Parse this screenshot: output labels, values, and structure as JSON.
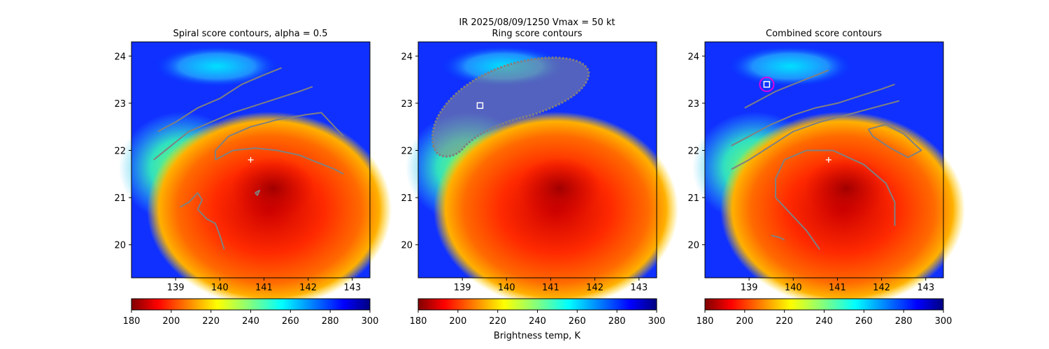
{
  "figure": {
    "suptitle_line1": "IR  2025/08/09/1250    Vmax = 50 kt",
    "colorbar_label": "Brightness temp, K"
  },
  "chart_data": [
    {
      "type": "heatmap",
      "title": "Spiral score contours, alpha =  0.5",
      "xlim": [
        138.0,
        143.4
      ],
      "ylim": [
        19.3,
        24.3
      ],
      "xticks": [
        "139",
        "140",
        "141",
        "142",
        "143"
      ],
      "yticks": [
        "20",
        "21",
        "22",
        "23",
        "24"
      ],
      "center_marker": {
        "lon": 140.7,
        "lat": 21.8
      },
      "contours": [
        [
          [
            138.6,
            22.4
          ],
          [
            139.0,
            22.6
          ],
          [
            139.5,
            22.9
          ],
          [
            140.0,
            23.1
          ],
          [
            140.5,
            23.4
          ],
          [
            141.0,
            23.6
          ],
          [
            141.4,
            23.75
          ]
        ],
        [
          [
            138.5,
            21.8
          ],
          [
            138.9,
            22.1
          ],
          [
            139.3,
            22.4
          ],
          [
            139.8,
            22.6
          ],
          [
            140.3,
            22.8
          ],
          [
            140.8,
            22.95
          ],
          [
            141.3,
            23.1
          ],
          [
            141.8,
            23.25
          ],
          [
            142.1,
            23.35
          ]
        ],
        [
          [
            139.9,
            21.8
          ],
          [
            139.9,
            22.0
          ],
          [
            140.2,
            22.3
          ],
          [
            140.7,
            22.5
          ],
          [
            141.3,
            22.65
          ],
          [
            141.9,
            22.75
          ],
          [
            142.3,
            22.8
          ],
          [
            142.6,
            22.5
          ],
          [
            142.8,
            22.3
          ]
        ],
        [
          [
            139.9,
            21.8
          ],
          [
            140.3,
            22.0
          ],
          [
            140.8,
            22.05
          ],
          [
            141.3,
            22.0
          ],
          [
            141.8,
            21.9
          ],
          [
            142.2,
            21.75
          ],
          [
            142.6,
            21.6
          ],
          [
            142.8,
            21.5
          ]
        ],
        [
          [
            139.1,
            20.8
          ],
          [
            139.3,
            20.9
          ],
          [
            139.5,
            21.1
          ],
          [
            139.6,
            20.95
          ],
          [
            139.5,
            20.75
          ],
          [
            139.7,
            20.55
          ],
          [
            139.9,
            20.45
          ],
          [
            140.0,
            20.2
          ],
          [
            140.1,
            19.9
          ]
        ],
        [
          [
            140.8,
            21.1
          ],
          [
            140.9,
            21.15
          ],
          [
            140.85,
            21.05
          ],
          [
            140.8,
            21.1
          ]
        ]
      ]
    },
    {
      "type": "heatmap",
      "title": "Ring score contours",
      "xlim": [
        138.0,
        143.4
      ],
      "ylim": [
        19.3,
        24.3
      ],
      "xticks": [
        "139",
        "140",
        "141",
        "142",
        "143"
      ],
      "yticks": [
        "20",
        "21",
        "22",
        "23",
        "24"
      ],
      "square_marker": {
        "lon": 139.4,
        "lat": 22.95
      }
    },
    {
      "type": "heatmap",
      "title": "Combined score contours",
      "xlim": [
        138.0,
        143.4
      ],
      "ylim": [
        19.3,
        24.3
      ],
      "xticks": [
        "139",
        "140",
        "141",
        "142",
        "143"
      ],
      "yticks": [
        "20",
        "21",
        "22",
        "23",
        "24"
      ],
      "center_marker": {
        "lon": 140.8,
        "lat": 21.8
      },
      "square_marker": {
        "lon": 139.4,
        "lat": 23.4
      },
      "circle_marker": {
        "lon": 139.4,
        "lat": 23.4
      },
      "contours": [
        [
          [
            138.9,
            22.9
          ],
          [
            139.2,
            23.05
          ],
          [
            139.6,
            23.25
          ],
          [
            140.0,
            23.4
          ],
          [
            140.4,
            23.55
          ],
          [
            140.8,
            23.7
          ]
        ],
        [
          [
            138.6,
            22.1
          ],
          [
            139.0,
            22.3
          ],
          [
            139.5,
            22.55
          ],
          [
            140.0,
            22.75
          ],
          [
            140.5,
            22.9
          ],
          [
            141.0,
            23.0
          ],
          [
            141.5,
            23.15
          ],
          [
            142.0,
            23.3
          ],
          [
            142.3,
            23.4
          ]
        ],
        [
          [
            138.6,
            21.6
          ],
          [
            139.0,
            21.8
          ],
          [
            139.5,
            22.1
          ],
          [
            140.0,
            22.4
          ],
          [
            140.6,
            22.6
          ],
          [
            141.2,
            22.75
          ],
          [
            141.8,
            22.9
          ],
          [
            142.4,
            23.05
          ]
        ],
        [
          [
            141.7,
            22.45
          ],
          [
            142.1,
            22.55
          ],
          [
            142.5,
            22.35
          ],
          [
            142.9,
            22.0
          ],
          [
            142.6,
            21.85
          ],
          [
            142.2,
            22.05
          ],
          [
            141.8,
            22.3
          ],
          [
            141.7,
            22.45
          ]
        ],
        [
          [
            140.6,
            19.9
          ],
          [
            140.3,
            20.3
          ],
          [
            139.9,
            20.7
          ],
          [
            139.6,
            21.0
          ],
          [
            139.6,
            21.4
          ],
          [
            139.8,
            21.8
          ],
          [
            140.3,
            22.0
          ],
          [
            140.9,
            22.0
          ],
          [
            141.6,
            21.7
          ],
          [
            142.1,
            21.3
          ],
          [
            142.3,
            20.9
          ],
          [
            142.3,
            20.4
          ]
        ],
        [
          [
            139.5,
            20.2
          ],
          [
            139.7,
            20.15
          ],
          [
            139.8,
            20.1
          ]
        ]
      ]
    },
    {
      "type": "colorbar",
      "colormap": "jet_reversed",
      "range": [
        180,
        300
      ],
      "ticks": [
        "180",
        "200",
        "220",
        "240",
        "260",
        "280",
        "300"
      ]
    }
  ]
}
